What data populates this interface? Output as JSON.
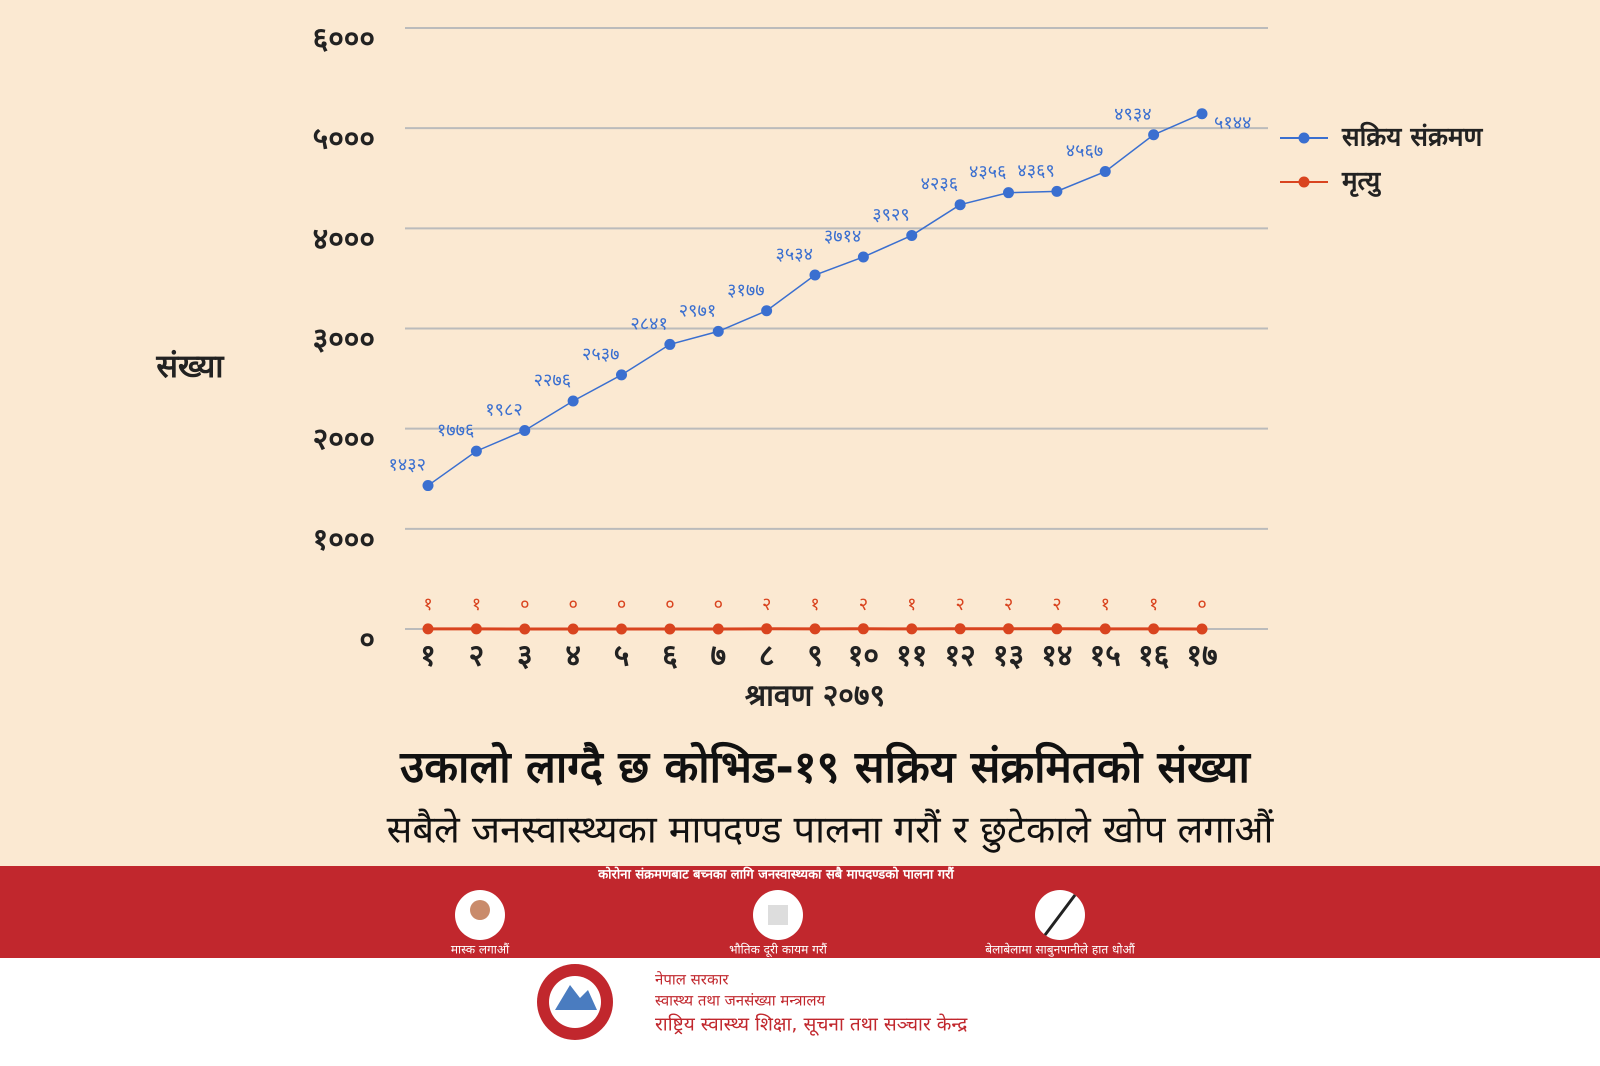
{
  "chart_data": {
    "type": "line",
    "y_label": "संख्या",
    "x_label": "श्रावण २०७९",
    "categories": [
      "१",
      "२",
      "३",
      "४",
      "५",
      "६",
      "७",
      "८",
      "९",
      "१०",
      "११",
      "१२",
      "१३",
      "१४",
      "१५",
      "१६",
      "१७"
    ],
    "series": [
      {
        "name": "सक्रिय संक्रमण",
        "color": "#3a6fd0",
        "values": [
          1432,
          1776,
          1982,
          2276,
          2537,
          2841,
          2971,
          3177,
          3534,
          3714,
          3929,
          4236,
          4356,
          4369,
          4567,
          4934,
          5144
        ],
        "value_labels": [
          "१४३२",
          "१७७६",
          "१९८२",
          "२२७६",
          "२५३७",
          "२८४१",
          "२९७१",
          "३१७७",
          "३५३४",
          "३७१४",
          "३९२९",
          "४२३६",
          "४३५६",
          "४३६९",
          "४५६७",
          "४९३४",
          "५१४४"
        ]
      },
      {
        "name": "मृत्यु",
        "color": "#d9441f",
        "values": [
          1,
          1,
          0,
          0,
          0,
          0,
          0,
          2,
          1,
          2,
          1,
          2,
          2,
          2,
          1,
          1,
          0
        ],
        "value_labels": [
          "१",
          "१",
          "०",
          "०",
          "०",
          "०",
          "०",
          "२",
          "१",
          "२",
          "१",
          "२",
          "२",
          "२",
          "१",
          "१",
          "०"
        ]
      }
    ],
    "ylim": [
      0,
      6000
    ],
    "yticks": [
      {
        "value": 0,
        "label": "०"
      },
      {
        "value": 1000,
        "label": "१०००"
      },
      {
        "value": 2000,
        "label": "२०००"
      },
      {
        "value": 3000,
        "label": "३०००"
      },
      {
        "value": 4000,
        "label": "४०००"
      },
      {
        "value": 5000,
        "label": "५०००"
      },
      {
        "value": 6000,
        "label": "६०००"
      }
    ],
    "grid": true,
    "legend": "right"
  },
  "headline": {
    "title": "उकालो लाग्दै छ कोभिड-१९ सक्रिय संक्रमितको संख्या",
    "subtitle": "सबैले जनस्वास्थ्यका मापदण्ड पालना गरौं र छुटेकाले खोप लगाऔं"
  },
  "banner": {
    "text": "कोरोना संक्रमणबाट बच्नका लागि जनस्वास्थ्यका सबै मापदण्डको पालना गरौं",
    "items": [
      "मास्क लगाऔं",
      "भौतिक दूरी कायम गरौं",
      "बेलाबेलामा साबुनपानीले हात धोऔं"
    ]
  },
  "footer": {
    "lines": [
      "नेपाल सरकार",
      "स्वास्थ्य तथा जनसंख्या मन्त्रालय",
      "राष्ट्रिय स्वास्थ्य शिक्षा, सूचना तथा सञ्चार केन्द्र"
    ]
  }
}
